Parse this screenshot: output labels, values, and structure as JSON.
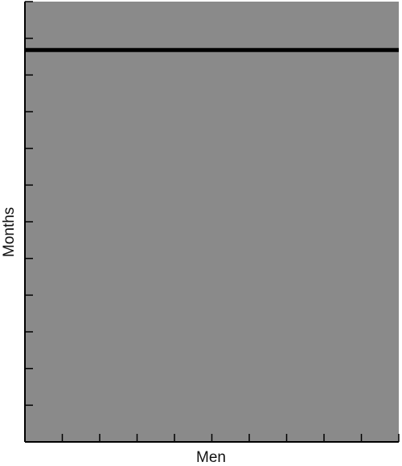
{
  "chart_data": {
    "type": "line",
    "title": "",
    "xlabel": "Men",
    "ylabel": "Months",
    "x_tick_count": 10,
    "y_tick_count": 12,
    "tick_labels_shown": false,
    "grid": false,
    "legend": "none",
    "series": [
      {
        "values": [
          0.89,
          0.89
        ],
        "x": [
          0,
          1
        ],
        "color": "#000000"
      }
    ],
    "xlim": [
      0,
      1
    ],
    "ylim": [
      0,
      1
    ],
    "plot_background": "#8a8a8a",
    "axis_color": "#000000"
  }
}
